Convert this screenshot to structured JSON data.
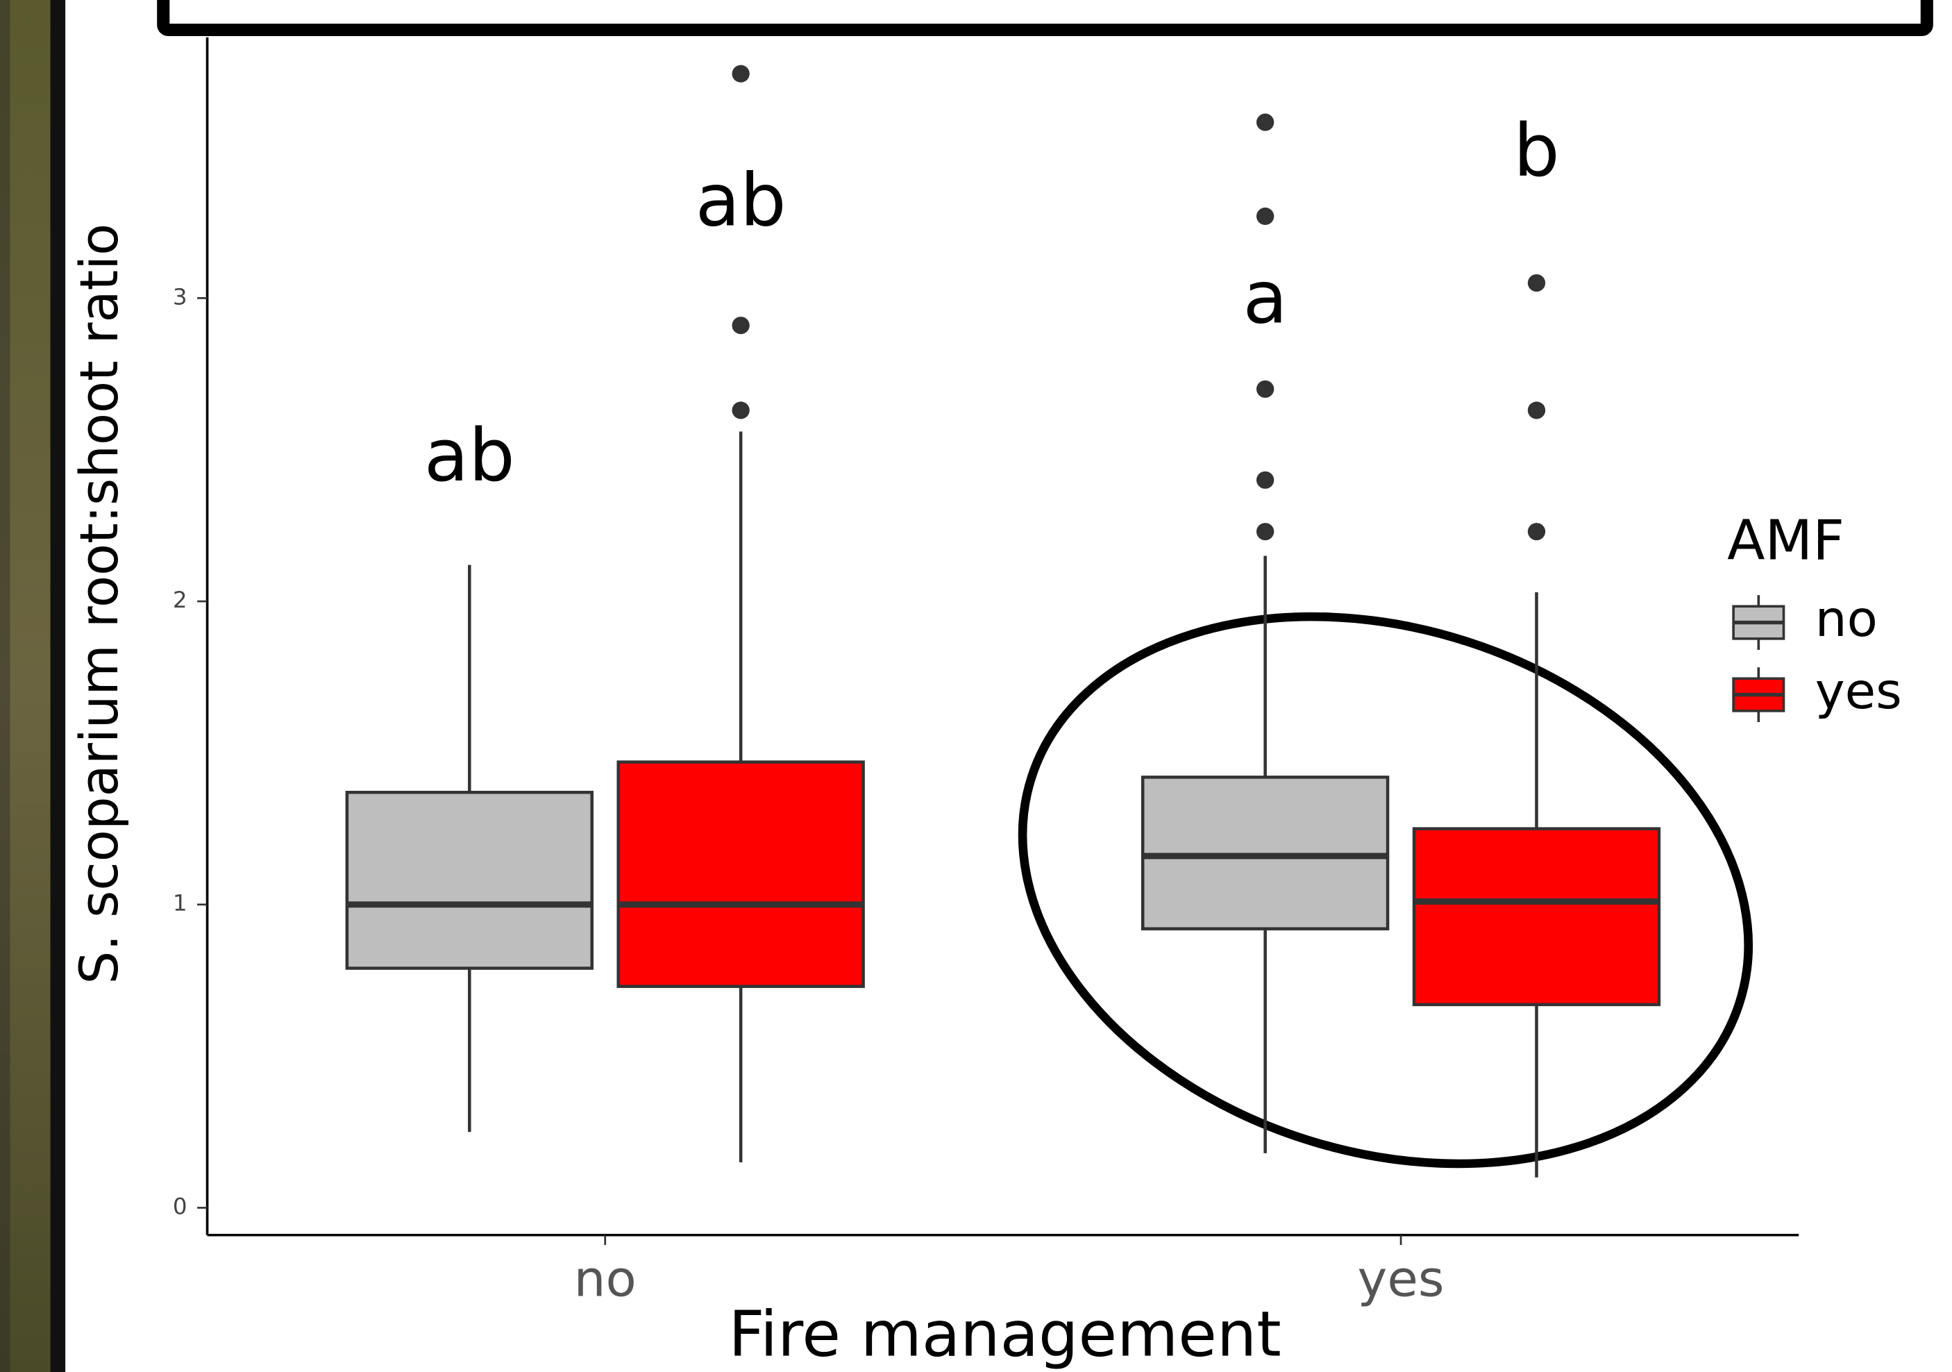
{
  "chart_data": {
    "type": "boxplot",
    "x_label": "Fire management",
    "y_label": "S. scoparium root:shoot ratio",
    "categories": [
      "no",
      "yes"
    ],
    "legend_title": "AMF",
    "ylim": [
      -0.09,
      3.86
    ],
    "yticks": [
      0,
      1,
      2,
      3
    ],
    "series": [
      {
        "name": "no",
        "color": "#bebebe",
        "boxes": [
          {
            "whislo": 0.25,
            "q1": 0.79,
            "med": 1.0,
            "q3": 1.37,
            "whishi": 2.12,
            "fliers": []
          },
          {
            "whislo": 0.18,
            "q1": 0.92,
            "med": 1.16,
            "q3": 1.42,
            "whishi": 2.15,
            "fliers": [
              2.23,
              2.4,
              2.7,
              3.27,
              3.58
            ]
          }
        ],
        "letters": [
          "ab",
          "a"
        ]
      },
      {
        "name": "yes",
        "color": "#ff0000",
        "boxes": [
          {
            "whislo": 0.15,
            "q1": 0.73,
            "med": 1.0,
            "q3": 1.47,
            "whishi": 2.56,
            "fliers": [
              2.63,
              2.91,
              3.74
            ]
          },
          {
            "whislo": 0.1,
            "q1": 0.67,
            "med": 1.01,
            "q3": 1.25,
            "whishi": 2.03,
            "fliers": [
              2.23,
              2.63,
              3.05
            ]
          }
        ],
        "letters": [
          "ab",
          "b"
        ]
      }
    ]
  }
}
